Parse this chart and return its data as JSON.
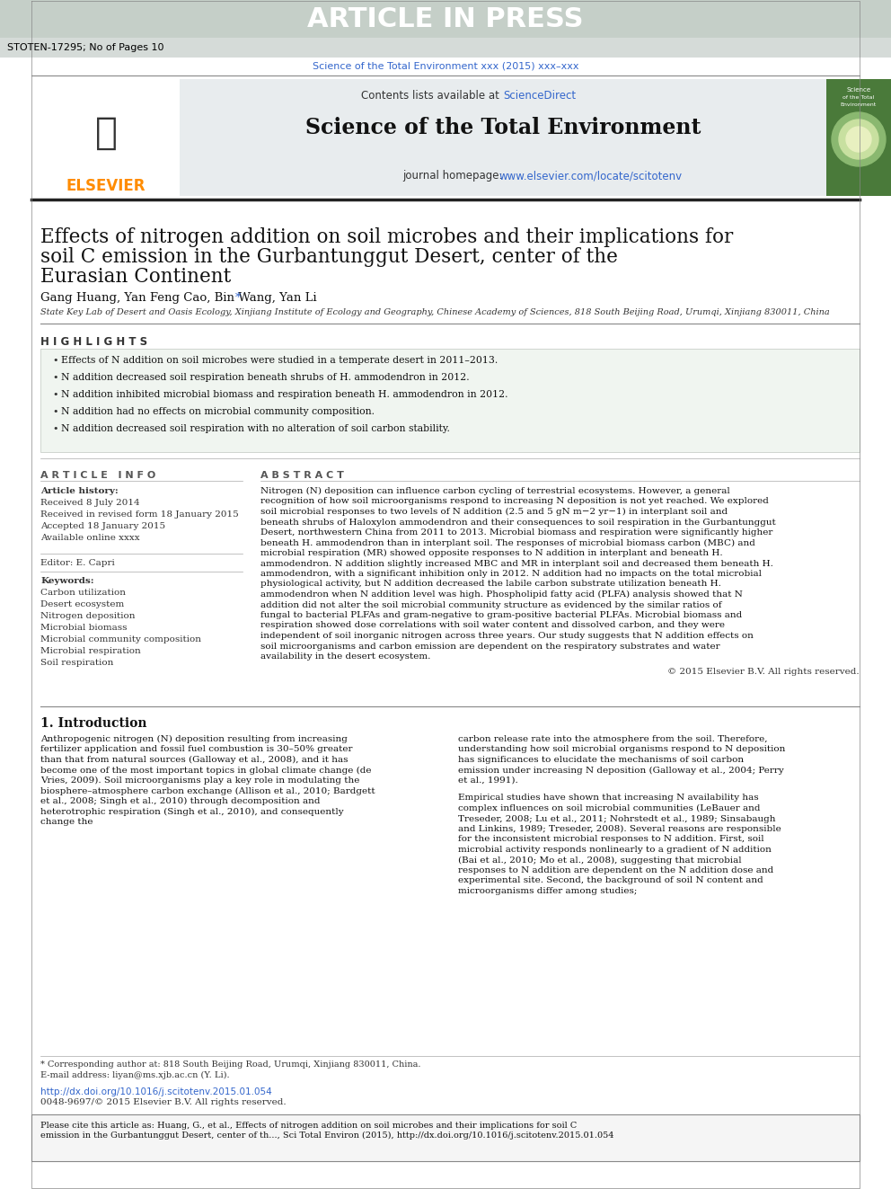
{
  "article_in_press_text": "ARTICLE IN PRESS",
  "article_in_press_bg": "#b0bbb5",
  "stoten_ref": "STOTEN-17295; No of Pages 10",
  "journal_citation": "Science of the Total Environment xxx (2015) xxx–xxx",
  "journal_citation_color": "#3366cc",
  "contents_text": "Contents lists available at ",
  "science_direct_text": "ScienceDirect",
  "science_direct_color": "#3366cc",
  "journal_name": "Science of the Total Environment",
  "journal_homepage_prefix": "journal homepage: ",
  "journal_homepage_url": "www.elsevier.com/locate/scitotenv",
  "journal_homepage_color": "#3366cc",
  "elsevier_color": "#ff8c00",
  "title_line1": "Effects of nitrogen addition on soil microbes and their implications for",
  "title_line2": "soil C emission in the Gurbantunggut Desert, center of the",
  "title_line3": "Eurasian Continent",
  "authors": "Gang Huang, Yan Feng Cao, Bin Wang, Yan Li",
  "affiliation": "State Key Lab of Desert and Oasis Ecology, Xinjiang Institute of Ecology and Geography, Chinese Academy of Sciences, 818 South Beijing Road, Urumqi, Xinjiang 830011, China",
  "highlights_title": "H I G H L I G H T S",
  "highlights": [
    "Effects of N addition on soil microbes were studied in a temperate desert in 2011–2013.",
    "N addition decreased soil respiration beneath shrubs of H. ammodendron in 2012.",
    "N addition inhibited microbial biomass and respiration beneath H. ammodendron in 2012.",
    "N addition had no effects on microbial community composition.",
    "N addition decreased soil respiration with no alteration of soil carbon stability."
  ],
  "article_info_title": "A R T I C L E   I N F O",
  "article_history_title": "Article history:",
  "received": "Received 8 July 2014",
  "received_revised": "Received in revised form 18 January 2015",
  "accepted": "Accepted 18 January 2015",
  "available": "Available online xxxx",
  "editor_label": "Editor: E. Capri",
  "keywords_title": "Keywords:",
  "keywords": [
    "Carbon utilization",
    "Desert ecosystem",
    "Nitrogen deposition",
    "Microbial biomass",
    "Microbial community composition",
    "Microbial respiration",
    "Soil respiration"
  ],
  "abstract_title": "A B S T R A C T",
  "abstract_text": "Nitrogen (N) deposition can influence carbon cycling of terrestrial ecosystems. However, a general recognition of how soil microorganisms respond to increasing N deposition is not yet reached. We explored soil microbial responses to two levels of N addition (2.5 and 5 gN m−2 yr−1) in interplant soil and beneath shrubs of Haloxylon ammodendron and their consequences to soil respiration in the Gurbantunggut Desert, northwestern China from 2011 to 2013. Microbial biomass and respiration were significantly higher beneath H. ammodendron than in interplant soil. The responses of microbial biomass carbon (MBC) and microbial respiration (MR) showed opposite responses to N addition in interplant and beneath H. ammodendron. N addition slightly increased MBC and MR in interplant soil and decreased them beneath H. ammodendron, with a significant inhibition only in 2012. N addition had no impacts on the total microbial physiological activity, but N addition decreased the labile carbon substrate utilization beneath H. ammodendron when N addition level was high. Phospholipid fatty acid (PLFA) analysis showed that N addition did not alter the soil microbial community structure as evidenced by the similar ratios of fungal to bacterial PLFAs and gram-negative to gram-positive bacterial PLFAs. Microbial biomass and respiration showed dose correlations with soil water content and dissolved carbon, and they were independent of soil inorganic nitrogen across three years. Our study suggests that N addition effects on soil microorganisms and carbon emission are dependent on the respiratory substrates and water availability in the desert ecosystem.",
  "copyright_text": "© 2015 Elsevier B.V. All rights reserved.",
  "intro_title": "1. Introduction",
  "intro_text1": "Anthropogenic nitrogen (N) deposition resulting from increasing fertilizer application and fossil fuel combustion is 30–50% greater than that from natural sources (Galloway et al., 2008), and it has become one of the most important topics in global climate change (de Vries, 2009). Soil microorganisms play a key role in modulating the biosphere–atmosphere carbon exchange (Allison et al., 2010; Bardgett et al., 2008; Singh et al., 2010) through decomposition and heterotrophic respiration (Singh et al., 2010), and consequently change the",
  "intro_text2": "carbon release rate into the atmosphere from the soil. Therefore, understanding how soil microbial organisms respond to N deposition has significances to elucidate the mechanisms of soil carbon emission under increasing N deposition (Galloway et al., 2004; Perry et al., 1991).",
  "intro_text3": "Empirical studies have shown that increasing N availability has complex influences on soil microbial communities (LeBauer and Treseder, 2008; Lu et al., 2011; Nohrstedt et al., 1989; Sinsabaugh and Linkins, 1989; Treseder, 2008). Several reasons are responsible for the inconsistent microbial responses to N addition. First, soil microbial activity responds nonlinearly to a gradient of N addition (Bai et al., 2010; Mo et al., 2008), suggesting that microbial responses to N addition are dependent on the N addition dose and experimental site. Second, the background of soil N content and microorganisms differ among studies;",
  "footnote_corr": "* Corresponding author at: 818 South Beijing Road, Urumqi, Xinjiang 830011, China.",
  "footnote_email": "E-mail address: liyan@ms.xjb.ac.cn (Y. Li).",
  "doi_text": "http://dx.doi.org/10.1016/j.scitotenv.2015.01.054",
  "issn_text": "0048-9697/© 2015 Elsevier B.V. All rights reserved.",
  "cite_box_text": "Please cite this article as: Huang, G., et al., Effects of nitrogen addition on soil microbes and their implications for soil C emission in the Gurbantunggut Desert, center of th..., Sci Total Environ (2015), http://dx.doi.org/10.1016/j.scitotenv.2015.01.054",
  "header_line_color": "#4a4a4a",
  "highlights_bg": "#f0f4f0",
  "header_bg": "#c5cfc8",
  "journal_header_bg": "#e8ecee"
}
